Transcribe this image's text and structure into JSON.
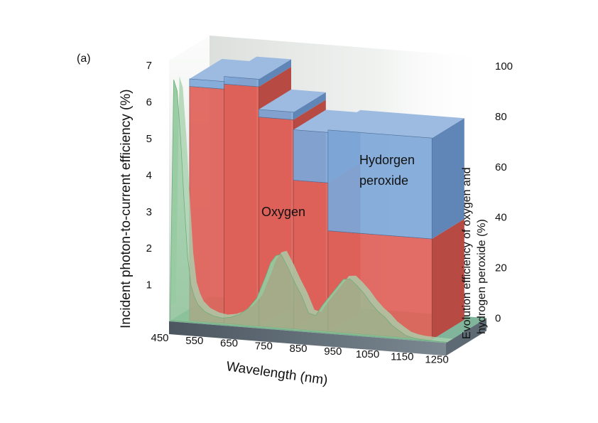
{
  "panel_label": "(a)",
  "chart_data": {
    "type": "bar",
    "style": "3d",
    "xlabel": "Wavelength (nm)",
    "ylabel_left": "Incident photon-to-current efficiency (%)",
    "ylabel_right_lines": [
      "Evolution efficiency of oxygen and",
      "hydrogen peroxide (%)"
    ],
    "x_ticks": [
      450,
      550,
      650,
      750,
      850,
      950,
      1050,
      1150,
      1250
    ],
    "y_left_ticks": [
      1,
      2,
      3,
      4,
      5,
      6,
      7
    ],
    "y_left_lim": [
      0,
      7
    ],
    "y_right_ticks": [
      0,
      20,
      40,
      60,
      80,
      100
    ],
    "y_right_lim": [
      0,
      100
    ],
    "bars": [
      {
        "x_start": 500,
        "x_end": 600,
        "oxygen": 93,
        "hydrogen_peroxide": 3
      },
      {
        "x_start": 600,
        "x_end": 700,
        "oxygen": 95,
        "hydrogen_peroxide": 3
      },
      {
        "x_start": 700,
        "x_end": 800,
        "oxygen": 83,
        "hydrogen_peroxide": 3
      },
      {
        "x_start": 800,
        "x_end": 900,
        "oxygen": 59,
        "hydrogen_peroxide": 20
      },
      {
        "x_start": 900,
        "x_end": 1200,
        "oxygen": 40,
        "hydrogen_peroxide": 40
      }
    ],
    "ipce_curve": {
      "x": [
        450,
        460,
        470,
        480,
        490,
        500,
        510,
        520,
        530,
        550,
        575,
        600,
        625,
        650,
        675,
        700,
        725,
        740,
        755,
        770,
        790,
        810,
        830,
        850,
        870,
        890,
        910,
        930,
        950,
        970,
        990,
        1010,
        1030,
        1050,
        1070,
        1090,
        1110,
        1130,
        1150,
        1170,
        1200,
        1230,
        1250
      ],
      "y": [
        0.4,
        6.6,
        6.3,
        5.0,
        3.3,
        1.8,
        1.0,
        0.7,
        0.5,
        0.32,
        0.22,
        0.18,
        0.22,
        0.32,
        0.5,
        0.8,
        1.4,
        1.8,
        2.0,
        2.05,
        1.7,
        1.3,
        0.95,
        0.5,
        0.45,
        0.75,
        1.0,
        1.25,
        1.5,
        1.52,
        1.35,
        1.15,
        0.9,
        0.7,
        0.55,
        0.35,
        0.22,
        0.1,
        0.05,
        0.02,
        0.01,
        0.0,
        0.0
      ]
    },
    "region_labels": {
      "oxygen": "Oxygen",
      "hydrogen_peroxide_lines": [
        "Hydorgen",
        "peroxide"
      ]
    },
    "colors": {
      "oxygen": "#e0625a",
      "hydrogen_peroxide": "#7fa8d8",
      "ipce": "#8fc79a"
    }
  }
}
